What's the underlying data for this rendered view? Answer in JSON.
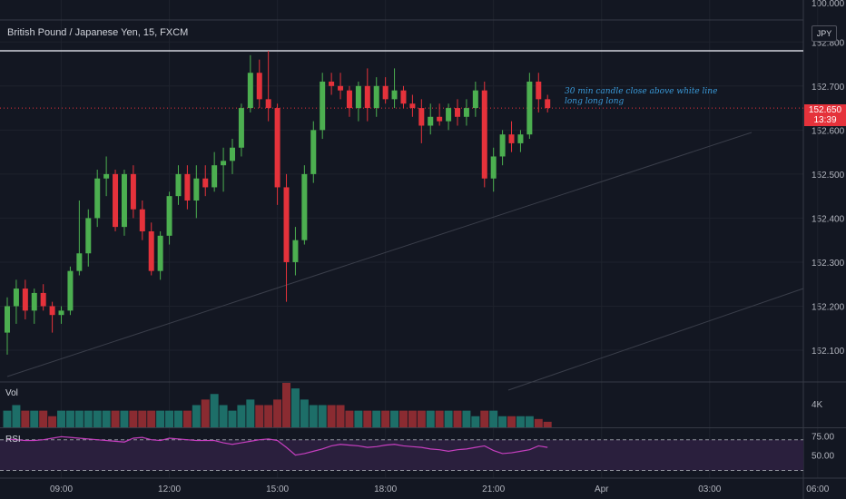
{
  "header": {
    "symbol_title": "British Pound / Japanese Yen, 15, FXCM",
    "currency": "JPY"
  },
  "panels": {
    "volume_label": "Vol",
    "volume_tick": "4K",
    "rsi_label": "RSI"
  },
  "price_badge": {
    "price": "152.650",
    "countdown": "13:39"
  },
  "annotation": {
    "line1": "30 min candle close above white line",
    "line2": "long long long"
  },
  "colors": {
    "background": "#131722",
    "up": "#26a69a",
    "up_candle": "#4caf50",
    "down": "#e5323b",
    "rsi_line": "#c63fbf"
  },
  "chart_data": {
    "type": "candlestick",
    "title": "British Pound / Japanese Yen, 15, FXCM",
    "ylim": [
      152.03,
      152.85
    ],
    "y_ticks": [
      "152.800",
      "152.700",
      "152.600",
      "152.500",
      "152.400",
      "152.300",
      "152.200",
      "152.100"
    ],
    "top_tick": "100.000",
    "x_tick_labels": [
      "09:00",
      "12:00",
      "15:00",
      "18:00",
      "21:00",
      "Apr",
      "03:00",
      "06:00"
    ],
    "x_tick_index": [
      6,
      18,
      30,
      42,
      54,
      66,
      78,
      90
    ],
    "resistance_level": 152.78,
    "candles": [
      [
        152.14,
        152.22,
        152.09,
        152.2
      ],
      [
        152.2,
        152.26,
        152.16,
        152.24
      ],
      [
        152.24,
        152.26,
        152.17,
        152.19
      ],
      [
        152.19,
        152.24,
        152.16,
        152.23
      ],
      [
        152.23,
        152.25,
        152.19,
        152.2
      ],
      [
        152.2,
        152.21,
        152.14,
        152.18
      ],
      [
        152.18,
        152.2,
        152.16,
        152.19
      ],
      [
        152.19,
        152.29,
        152.18,
        152.28
      ],
      [
        152.28,
        152.44,
        152.27,
        152.32
      ],
      [
        152.32,
        152.42,
        152.29,
        152.4
      ],
      [
        152.4,
        152.51,
        152.38,
        152.49
      ],
      [
        152.49,
        152.54,
        152.45,
        152.5
      ],
      [
        152.5,
        152.51,
        152.37,
        152.38
      ],
      [
        152.38,
        152.51,
        152.36,
        152.5
      ],
      [
        152.5,
        152.52,
        152.4,
        152.42
      ],
      [
        152.42,
        152.44,
        152.35,
        152.37
      ],
      [
        152.37,
        152.39,
        152.27,
        152.28
      ],
      [
        152.28,
        152.37,
        152.26,
        152.36
      ],
      [
        152.36,
        152.46,
        152.34,
        152.45
      ],
      [
        152.45,
        152.52,
        152.43,
        152.5
      ],
      [
        152.5,
        152.52,
        152.42,
        152.44
      ],
      [
        152.44,
        152.52,
        152.4,
        152.49
      ],
      [
        152.49,
        152.52,
        152.45,
        152.47
      ],
      [
        152.47,
        152.55,
        152.46,
        152.52
      ],
      [
        152.52,
        152.56,
        152.46,
        152.53
      ],
      [
        152.53,
        152.58,
        152.5,
        152.56
      ],
      [
        152.56,
        152.66,
        152.54,
        152.65
      ],
      [
        152.65,
        152.77,
        152.64,
        152.73
      ],
      [
        152.73,
        152.76,
        152.65,
        152.67
      ],
      [
        152.67,
        152.78,
        152.62,
        152.65
      ],
      [
        152.65,
        152.66,
        152.43,
        152.47
      ],
      [
        152.47,
        152.5,
        152.21,
        152.3
      ],
      [
        152.3,
        152.38,
        152.27,
        152.35
      ],
      [
        152.35,
        152.52,
        152.34,
        152.5
      ],
      [
        152.5,
        152.62,
        152.48,
        152.6
      ],
      [
        152.6,
        152.73,
        152.58,
        152.71
      ],
      [
        152.71,
        152.73,
        152.68,
        152.7
      ],
      [
        152.7,
        152.73,
        152.67,
        152.69
      ],
      [
        152.69,
        152.7,
        152.63,
        152.65
      ],
      [
        152.65,
        152.71,
        152.62,
        152.7
      ],
      [
        152.7,
        152.74,
        152.62,
        152.65
      ],
      [
        152.65,
        152.72,
        152.63,
        152.7
      ],
      [
        152.7,
        152.72,
        152.66,
        152.67
      ],
      [
        152.67,
        152.74,
        152.65,
        152.69
      ],
      [
        152.69,
        152.7,
        152.65,
        152.66
      ],
      [
        152.66,
        152.68,
        152.63,
        152.65
      ],
      [
        152.65,
        152.67,
        152.57,
        152.61
      ],
      [
        152.61,
        152.66,
        152.59,
        152.63
      ],
      [
        152.63,
        152.66,
        152.61,
        152.62
      ],
      [
        152.62,
        152.66,
        152.6,
        152.65
      ],
      [
        152.65,
        152.67,
        152.61,
        152.63
      ],
      [
        152.63,
        152.67,
        152.61,
        152.65
      ],
      [
        152.65,
        152.71,
        152.63,
        152.69
      ],
      [
        152.69,
        152.71,
        152.47,
        152.49
      ],
      [
        152.49,
        152.56,
        152.46,
        152.54
      ],
      [
        152.54,
        152.6,
        152.52,
        152.59
      ],
      [
        152.59,
        152.62,
        152.55,
        152.57
      ],
      [
        152.57,
        152.6,
        152.55,
        152.59
      ],
      [
        152.59,
        152.73,
        152.58,
        152.71
      ],
      [
        152.71,
        152.73,
        152.64,
        152.67
      ],
      [
        152.67,
        152.68,
        152.64,
        152.65
      ]
    ],
    "volume": [
      3,
      4,
      3,
      3,
      3,
      2,
      3,
      3,
      3,
      3,
      3,
      3,
      3,
      3,
      3,
      3,
      3,
      3,
      3,
      3,
      3,
      4,
      5,
      6,
      4,
      3,
      4,
      5,
      4,
      4,
      5,
      8,
      7,
      5,
      4,
      4,
      4,
      4,
      3,
      3,
      3,
      3,
      3,
      3,
      3,
      3,
      3,
      3,
      3,
      3,
      3,
      3,
      2,
      3,
      3,
      2,
      2,
      2,
      2,
      1.5,
      1
    ],
    "volume_max": 8,
    "volume_ylim": [
      0,
      8
    ],
    "rsi": [
      71,
      70,
      69,
      69,
      70,
      72,
      74,
      73,
      72,
      71,
      70,
      69,
      68,
      67,
      72,
      73,
      70,
      69,
      72,
      71,
      70,
      69,
      69,
      69,
      66,
      64,
      66,
      68,
      70,
      71,
      69,
      60,
      50,
      52,
      55,
      58,
      62,
      64,
      63,
      62,
      60,
      61,
      63,
      64,
      62,
      61,
      60,
      58,
      57,
      55,
      57,
      58,
      60,
      62,
      56,
      52,
      53,
      55,
      57,
      62,
      60
    ],
    "rsi_ylim": [
      20,
      85
    ],
    "rsi_ticks": [
      "75.00",
      "50.00"
    ],
    "rsi_levels": [
      70,
      30
    ]
  }
}
